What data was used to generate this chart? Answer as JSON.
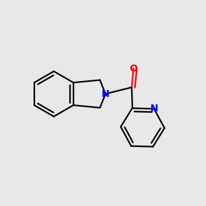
{
  "background_color": "#e8e8e8",
  "bond_color": "#000000",
  "nitrogen_color": "#0000ff",
  "oxygen_color": "#ff0000",
  "bond_width": 1.6,
  "figsize": [
    3.0,
    3.0
  ],
  "dpi": 100,
  "xlim": [
    -2.8,
    2.8
  ],
  "ylim": [
    -2.5,
    2.2
  ]
}
